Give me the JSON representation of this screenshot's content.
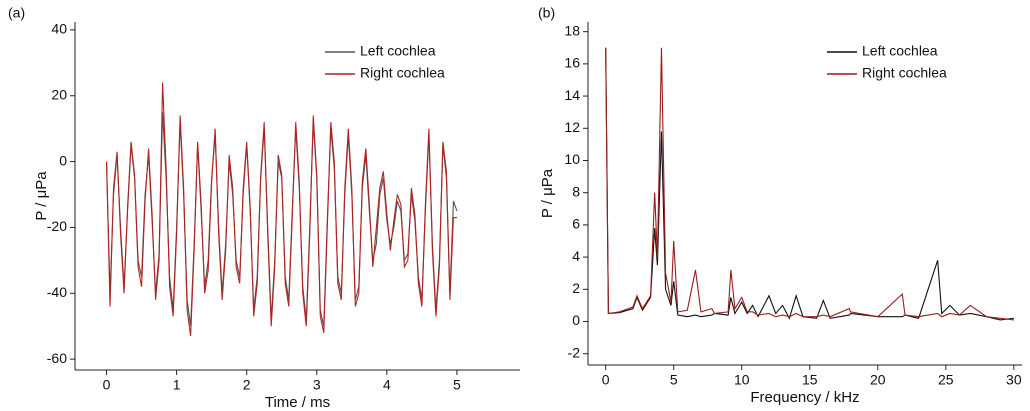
{
  "chart_data": [
    {
      "type": "line",
      "panel_label": "(a)",
      "x_label": "Time / ms",
      "y_label": "P / μPa",
      "x": [
        0,
        0.05,
        0.1,
        0.15,
        0.2,
        0.25,
        0.3,
        0.35,
        0.4,
        0.45,
        0.5,
        0.55,
        0.6,
        0.65,
        0.7,
        0.75,
        0.8,
        0.85,
        0.9,
        0.95,
        1,
        1.05,
        1.1,
        1.15,
        1.2,
        1.25,
        1.3,
        1.35,
        1.4,
        1.45,
        1.5,
        1.55,
        1.6,
        1.65,
        1.7,
        1.75,
        1.8,
        1.85,
        1.9,
        1.95,
        2,
        2.05,
        2.1,
        2.15,
        2.2,
        2.25,
        2.3,
        2.35,
        2.4,
        2.45,
        2.5,
        2.55,
        2.6,
        2.65,
        2.7,
        2.75,
        2.8,
        2.85,
        2.9,
        2.95,
        3,
        3.05,
        3.1,
        3.15,
        3.2,
        3.25,
        3.3,
        3.35,
        3.4,
        3.45,
        3.5,
        3.55,
        3.6,
        3.65,
        3.7,
        3.75,
        3.8,
        3.85,
        3.9,
        3.95,
        4,
        4.05,
        4.1,
        4.15,
        4.2,
        4.25,
        4.3,
        4.35,
        4.4,
        4.45,
        4.5,
        4.55,
        4.6,
        4.65,
        4.7,
        4.75,
        4.8,
        4.85,
        4.9,
        4.95,
        5
      ],
      "series": [
        {
          "name": "Left cochlea",
          "color": "#555555",
          "values": [
            0,
            -40,
            -10,
            2,
            -20,
            -38,
            -15,
            5,
            -5,
            -30,
            -35,
            -10,
            2,
            -18,
            -40,
            -28,
            15,
            -5,
            -35,
            -45,
            -20,
            12,
            -10,
            -42,
            -50,
            -25,
            5,
            -15,
            -38,
            -30,
            -5,
            8,
            -20,
            -40,
            -25,
            0,
            -10,
            -30,
            -35,
            -10,
            5,
            -15,
            -45,
            -35,
            -5,
            10,
            -20,
            -48,
            -30,
            0,
            -5,
            -35,
            -42,
            -15,
            10,
            -8,
            -38,
            -48,
            -20,
            12,
            -5,
            -45,
            -50,
            -18,
            10,
            -2,
            -35,
            -40,
            -10,
            8,
            -10,
            -42,
            -38,
            -8,
            2,
            -15,
            -30,
            -25,
            -10,
            -5,
            -18,
            -25,
            -20,
            -12,
            -15,
            -30,
            -28,
            -10,
            -18,
            -35,
            -42,
            -15,
            8,
            -25,
            -45,
            -30,
            5,
            -5,
            -40,
            -12,
            -15
          ]
        },
        {
          "name": "Right cochlea",
          "color": "#b22222",
          "values": [
            0,
            -44,
            -8,
            3,
            -22,
            -40,
            -14,
            6,
            -4,
            -32,
            -38,
            -12,
            4,
            -16,
            -42,
            -30,
            24,
            -2,
            -38,
            -47,
            -22,
            14,
            -8,
            -45,
            -53,
            -27,
            6,
            -13,
            -40,
            -33,
            -6,
            10,
            -22,
            -42,
            -27,
            2,
            -8,
            -32,
            -37,
            -8,
            6,
            -14,
            -47,
            -37,
            -4,
            12,
            -22,
            -50,
            -32,
            2,
            -4,
            -37,
            -44,
            -17,
            12,
            -6,
            -40,
            -50,
            -22,
            14,
            -4,
            -47,
            -52,
            -20,
            12,
            0,
            -37,
            -42,
            -8,
            10,
            -8,
            -44,
            -40,
            -6,
            4,
            -13,
            -32,
            -20,
            -8,
            -3,
            -16,
            -27,
            -18,
            -10,
            -13,
            -32,
            -30,
            -8,
            -16,
            -37,
            -44,
            -13,
            10,
            -27,
            -47,
            -32,
            6,
            -3,
            -42,
            -17,
            -17
          ]
        }
      ],
      "xlim": [
        -0.45,
        5.9
      ],
      "ylim": [
        -63.3,
        42.4
      ],
      "xticks": [
        0,
        1,
        2,
        3,
        4,
        5
      ],
      "yticks": [
        -60,
        -40,
        -20,
        0,
        20,
        40
      ],
      "legend": "upper right"
    },
    {
      "type": "line",
      "panel_label": "(b)",
      "x_label": "Frequency / kHz",
      "y_label": "P / μPa",
      "x": [
        0,
        0.2,
        1,
        2,
        2.3,
        2.7,
        3.3,
        3.6,
        3.8,
        4.1,
        4.4,
        4.8,
        5.0,
        5.3,
        6,
        6.6,
        7,
        7.8,
        8,
        9,
        9.2,
        9.5,
        10,
        10.4,
        10.8,
        11.2,
        12,
        12.5,
        13,
        13.5,
        14,
        14.5,
        15.5,
        16,
        16.5,
        17.9,
        18,
        20,
        21.8,
        22,
        23,
        24.4,
        24.7,
        25.3,
        26,
        26.8,
        28,
        29,
        30
      ],
      "series": [
        {
          "name": "Left cochlea",
          "color": "#111111",
          "values": [
            17,
            0.5,
            0.55,
            0.8,
            1.5,
            0.7,
            1.5,
            5.8,
            3.5,
            11.8,
            2,
            1,
            2.5,
            0.4,
            0.3,
            0.4,
            0.3,
            0.4,
            0.5,
            0.4,
            1.5,
            0.5,
            1.2,
            0.5,
            1.0,
            0.3,
            1.6,
            0.5,
            1.0,
            0.2,
            1.6,
            0.3,
            0.2,
            1.3,
            0.2,
            0.4,
            0.5,
            0.3,
            0.3,
            0.4,
            0.2,
            3.8,
            0.5,
            1.0,
            0.4,
            0.5,
            0.3,
            0.1,
            0.2
          ]
        },
        {
          "name": "Right cochlea",
          "color": "#9b1c1c",
          "values": [
            17,
            0.5,
            0.6,
            0.9,
            1.6,
            0.8,
            1.6,
            8,
            4,
            17,
            3,
            1.2,
            5,
            0.6,
            0.7,
            3.2,
            0.6,
            0.8,
            0.5,
            0.6,
            3.2,
            0.8,
            1.5,
            0.6,
            0.6,
            0.4,
            0.5,
            0.3,
            0.4,
            0.3,
            0.5,
            0.3,
            0.3,
            0.4,
            0.3,
            0.8,
            0.6,
            0.3,
            1.7,
            0.4,
            0.3,
            0.5,
            0.3,
            0.5,
            0.4,
            1.0,
            0.3,
            0.2,
            0.1
          ]
        }
      ],
      "xlim": [
        -1.3,
        30.6
      ],
      "ylim": [
        -2.7,
        18.6
      ],
      "xticks": [
        0,
        5,
        10,
        15,
        20,
        25,
        30
      ],
      "yticks": [
        -2,
        0,
        2,
        4,
        6,
        8,
        10,
        12,
        14,
        16,
        18
      ],
      "legend": "upper right"
    }
  ]
}
